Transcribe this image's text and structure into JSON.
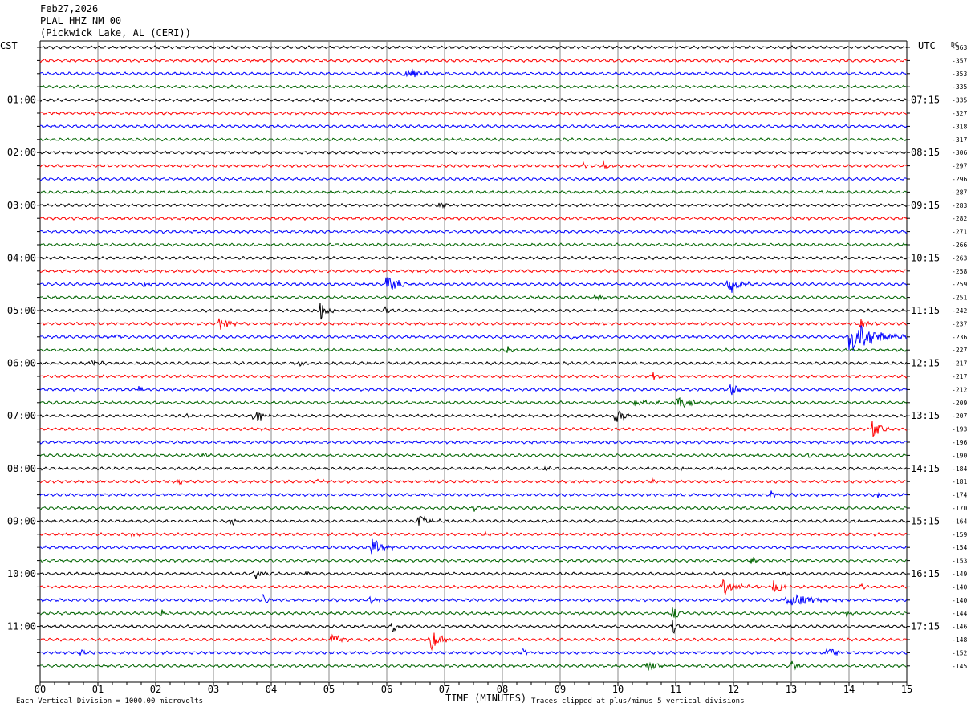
{
  "header": {
    "date": "Feb27,2026",
    "station": "PLAL HHZ NM 00",
    "location": "(Pickwick Lake, AL (CERI))"
  },
  "chart_data": {
    "type": "line",
    "title": "",
    "left_axis_label": "CST",
    "right_axis_label": "UTC",
    "dc_label": "DC",
    "xlabel": "TIME (MINUTES)",
    "x_ticks": [
      "00",
      "01",
      "02",
      "03",
      "04",
      "05",
      "06",
      "07",
      "08",
      "09",
      "10",
      "11",
      "12",
      "13",
      "14",
      "15"
    ],
    "xlim": [
      0,
      15
    ],
    "left_hour_labels": [
      {
        "row": 4,
        "text": "01:00"
      },
      {
        "row": 8,
        "text": "02:00"
      },
      {
        "row": 12,
        "text": "03:00"
      },
      {
        "row": 16,
        "text": "04:00"
      },
      {
        "row": 20,
        "text": "05:00"
      },
      {
        "row": 24,
        "text": "06:00"
      },
      {
        "row": 28,
        "text": "07:00"
      },
      {
        "row": 32,
        "text": "08:00"
      },
      {
        "row": 36,
        "text": "09:00"
      },
      {
        "row": 40,
        "text": "10:00"
      },
      {
        "row": 44,
        "text": "11:00"
      }
    ],
    "right_hour_labels": [
      {
        "row": 4,
        "text": "07:15"
      },
      {
        "row": 8,
        "text": "08:15"
      },
      {
        "row": 12,
        "text": "09:15"
      },
      {
        "row": 16,
        "text": "10:15"
      },
      {
        "row": 20,
        "text": "11:15"
      },
      {
        "row": 24,
        "text": "12:15"
      },
      {
        "row": 28,
        "text": "13:15"
      },
      {
        "row": 32,
        "text": "14:15"
      },
      {
        "row": 36,
        "text": "15:15"
      },
      {
        "row": 40,
        "text": "16:15"
      },
      {
        "row": 44,
        "text": "17:15"
      }
    ],
    "dc_offsets": [
      "-363",
      "-357",
      "-353",
      "-335",
      "-335",
      "-327",
      "-318",
      "-317",
      "-306",
      "-297",
      "-296",
      "-287",
      "-283",
      "-282",
      "-271",
      "-266",
      "-263",
      "-258",
      "-259",
      "-251",
      "-242",
      "-237",
      "-236",
      "-227",
      "-217",
      "-217",
      "-212",
      "-209",
      "-207",
      "-193",
      "-196",
      "-190",
      "-184",
      "-181",
      "-174",
      "-170",
      "-164",
      "-159",
      "-154",
      "-153",
      "-149",
      "-140",
      "-140",
      "-144",
      "-146",
      "-148",
      "-152",
      "-145"
    ],
    "trace_colors": [
      "#000000",
      "#ff0000",
      "#0000ff",
      "#006400"
    ],
    "events": [
      {
        "row": 2,
        "t": 5.8,
        "amp": 5,
        "dur": 0.1
      },
      {
        "row": 2,
        "t": 6.3,
        "amp": 9,
        "dur": 0.7
      },
      {
        "row": 9,
        "t": 9.4,
        "amp": 6,
        "dur": 0.15
      },
      {
        "row": 9,
        "t": 9.75,
        "amp": 7,
        "dur": 0.2
      },
      {
        "row": 12,
        "t": 6.9,
        "amp": 6,
        "dur": 0.3
      },
      {
        "row": 18,
        "t": 1.8,
        "amp": 4,
        "dur": 0.3
      },
      {
        "row": 18,
        "t": 6.0,
        "amp": 14,
        "dur": 0.5
      },
      {
        "row": 18,
        "t": 11.9,
        "amp": 14,
        "dur": 0.5
      },
      {
        "row": 19,
        "t": 9.6,
        "amp": 3,
        "dur": 0.6
      },
      {
        "row": 20,
        "t": 4.85,
        "amp": 14,
        "dur": 0.3
      },
      {
        "row": 20,
        "t": 5.95,
        "amp": 6,
        "dur": 0.2
      },
      {
        "row": 21,
        "t": 3.1,
        "amp": 9,
        "dur": 0.4
      },
      {
        "row": 21,
        "t": 14.2,
        "amp": 8,
        "dur": 0.3
      },
      {
        "row": 22,
        "t": 1.3,
        "amp": 4,
        "dur": 0.2
      },
      {
        "row": 22,
        "t": 9.2,
        "amp": 4,
        "dur": 0.2
      },
      {
        "row": 22,
        "t": 14.0,
        "amp": 26,
        "dur": 1.0
      },
      {
        "row": 23,
        "t": 1.9,
        "amp": 3,
        "dur": 0.2
      },
      {
        "row": 23,
        "t": 8.1,
        "amp": 6,
        "dur": 0.2
      },
      {
        "row": 24,
        "t": 0.9,
        "amp": 6,
        "dur": 0.3
      },
      {
        "row": 24,
        "t": 4.5,
        "amp": 4,
        "dur": 0.2
      },
      {
        "row": 25,
        "t": 10.6,
        "amp": 7,
        "dur": 0.2
      },
      {
        "row": 26,
        "t": 1.7,
        "amp": 5,
        "dur": 0.2
      },
      {
        "row": 26,
        "t": 11.95,
        "amp": 9,
        "dur": 0.3
      },
      {
        "row": 27,
        "t": 10.3,
        "amp": 5,
        "dur": 0.8
      },
      {
        "row": 27,
        "t": 11.0,
        "amp": 9,
        "dur": 0.8
      },
      {
        "row": 28,
        "t": 3.7,
        "amp": 10,
        "dur": 0.4
      },
      {
        "row": 28,
        "t": 9.95,
        "amp": 10,
        "dur": 0.4
      },
      {
        "row": 28,
        "t": 2.5,
        "amp": 3,
        "dur": 0.5
      },
      {
        "row": 29,
        "t": 14.4,
        "amp": 12,
        "dur": 0.4
      },
      {
        "row": 31,
        "t": 2.8,
        "amp": 4,
        "dur": 0.2
      },
      {
        "row": 31,
        "t": 13.3,
        "amp": 3,
        "dur": 0.4
      },
      {
        "row": 32,
        "t": 8.7,
        "amp": 4,
        "dur": 0.2
      },
      {
        "row": 32,
        "t": 11.1,
        "amp": 3,
        "dur": 0.3
      },
      {
        "row": 33,
        "t": 2.4,
        "amp": 3,
        "dur": 0.2
      },
      {
        "row": 33,
        "t": 4.8,
        "amp": 3,
        "dur": 0.4
      },
      {
        "row": 33,
        "t": 10.6,
        "amp": 3,
        "dur": 0.2
      },
      {
        "row": 34,
        "t": 12.65,
        "amp": 7,
        "dur": 0.2
      },
      {
        "row": 34,
        "t": 14.5,
        "amp": 4,
        "dur": 0.2
      },
      {
        "row": 35,
        "t": 7.5,
        "amp": 5,
        "dur": 0.3
      },
      {
        "row": 36,
        "t": 3.3,
        "amp": 8,
        "dur": 0.2
      },
      {
        "row": 36,
        "t": 6.55,
        "amp": 10,
        "dur": 0.4
      },
      {
        "row": 37,
        "t": 1.6,
        "amp": 4,
        "dur": 0.3
      },
      {
        "row": 37,
        "t": 7.7,
        "amp": 3,
        "dur": 0.2
      },
      {
        "row": 38,
        "t": 5.75,
        "amp": 14,
        "dur": 0.4
      },
      {
        "row": 39,
        "t": 12.3,
        "amp": 6,
        "dur": 0.2
      },
      {
        "row": 40,
        "t": 3.7,
        "amp": 7,
        "dur": 0.5
      },
      {
        "row": 40,
        "t": 4.6,
        "amp": 3,
        "dur": 0.2
      },
      {
        "row": 40,
        "t": 12.8,
        "amp": 4,
        "dur": 0.3
      },
      {
        "row": 41,
        "t": 11.8,
        "amp": 11,
        "dur": 0.7
      },
      {
        "row": 41,
        "t": 12.7,
        "amp": 14,
        "dur": 0.3
      },
      {
        "row": 41,
        "t": 14.2,
        "amp": 4,
        "dur": 0.2
      },
      {
        "row": 42,
        "t": 3.85,
        "amp": 8,
        "dur": 0.2
      },
      {
        "row": 42,
        "t": 5.7,
        "amp": 4,
        "dur": 0.5
      },
      {
        "row": 42,
        "t": 12.9,
        "amp": 9,
        "dur": 1.2
      },
      {
        "row": 43,
        "t": 2.1,
        "amp": 6,
        "dur": 0.2
      },
      {
        "row": 43,
        "t": 10.95,
        "amp": 12,
        "dur": 0.3
      },
      {
        "row": 43,
        "t": 13.95,
        "amp": 4,
        "dur": 0.2
      },
      {
        "row": 44,
        "t": 6.1,
        "amp": 9,
        "dur": 0.2
      },
      {
        "row": 44,
        "t": 10.95,
        "amp": 10,
        "dur": 0.2
      },
      {
        "row": 45,
        "t": 5.05,
        "amp": 9,
        "dur": 0.4
      },
      {
        "row": 45,
        "t": 6.75,
        "amp": 16,
        "dur": 0.4
      },
      {
        "row": 46,
        "t": 0.7,
        "amp": 4,
        "dur": 0.2
      },
      {
        "row": 46,
        "t": 8.35,
        "amp": 7,
        "dur": 0.2
      },
      {
        "row": 46,
        "t": 13.6,
        "amp": 7,
        "dur": 0.5
      },
      {
        "row": 47,
        "t": 10.5,
        "amp": 6,
        "dur": 0.7
      },
      {
        "row": 47,
        "t": 13.0,
        "amp": 7,
        "dur": 0.3
      }
    ],
    "footer_left": "Each Vertical Division = 1000.00 microvolts",
    "footer_right": "Traces clipped at plus/minus 5 vertical divisions"
  }
}
